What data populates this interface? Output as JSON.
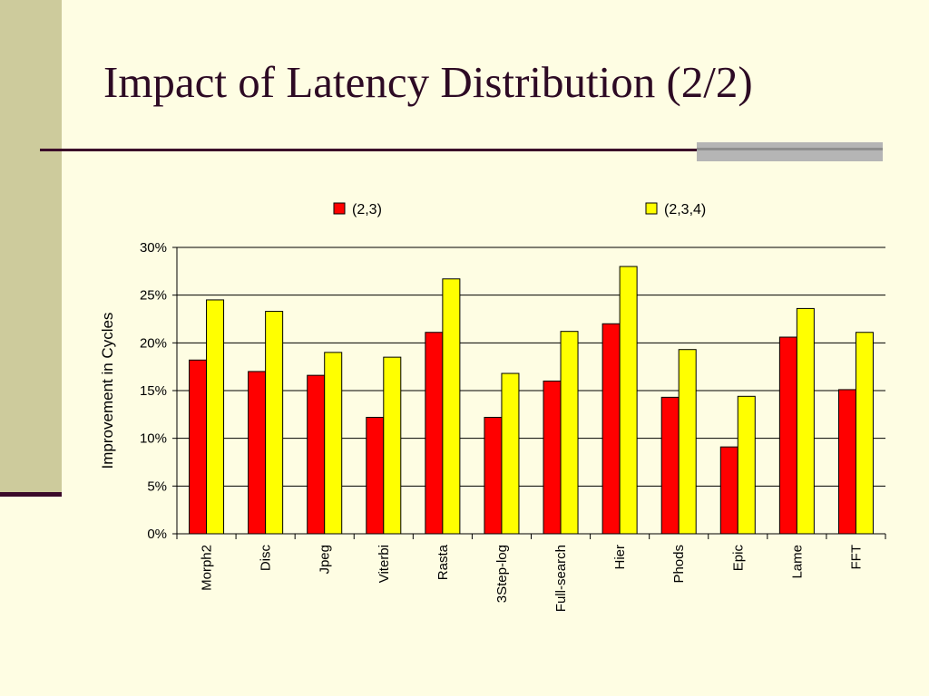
{
  "slide": {
    "title": "Impact of Latency Distribution  (2/2)"
  },
  "colors": {
    "background": "#fefde3",
    "side_band": "#cdcb9c",
    "title_text": "#2d0a24",
    "rule": "#3b0a2a",
    "accent_bar": "#b5b5b5"
  },
  "chart_data": {
    "type": "bar",
    "title": "",
    "xlabel": "",
    "ylabel": "Improvement in Cycles",
    "ylim": [
      0,
      30
    ],
    "yticks": [
      "0%",
      "5%",
      "10%",
      "15%",
      "20%",
      "25%",
      "30%"
    ],
    "grid": true,
    "legend_position": "top",
    "categories": [
      "Morph2",
      "Disc",
      "Jpeg",
      "Viterbi",
      "Rasta",
      "3Step-log",
      "Full-search",
      "Hier",
      "Phods",
      "Epic",
      "Lame",
      "FFT"
    ],
    "series": [
      {
        "name": "(2,3)",
        "color": "#ff0000",
        "values": [
          18.2,
          17.0,
          16.6,
          12.2,
          21.1,
          12.2,
          16.0,
          22.0,
          14.3,
          9.1,
          20.6,
          15.1
        ]
      },
      {
        "name": "(2,3,4)",
        "color": "#ffff00",
        "values": [
          24.5,
          23.3,
          19.0,
          18.5,
          26.7,
          16.8,
          21.2,
          28.0,
          19.3,
          14.4,
          23.6,
          21.1
        ]
      }
    ]
  }
}
